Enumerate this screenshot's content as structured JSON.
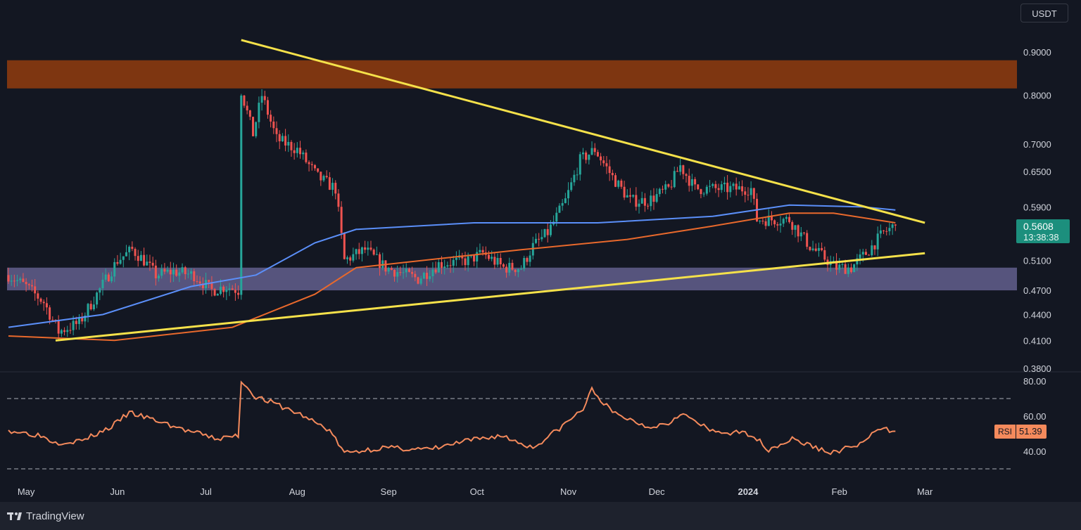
{
  "currency": "USDT",
  "price_tag": {
    "value": "0.5608",
    "timer": "13:38:38"
  },
  "rsi_tag": {
    "label": "RSI",
    "value": "51.39"
  },
  "branding": {
    "name": "TradingView"
  },
  "colors": {
    "background": "#131722",
    "up_candle": "#26a69a",
    "down_candle": "#ef5350",
    "trendline": "#f5e14a",
    "ma_blue": "#5b8ff9",
    "ma_orange": "#e9692c",
    "resistance_zone": "#8b3a10",
    "support_zone": "#6e6a9c",
    "rsi_line": "#f48a5c",
    "price_tag": "#1c8f7d"
  },
  "chart_data": [
    {
      "type": "candlestick",
      "price_scale": "log",
      "y_ticks": [
        "0.9000",
        "0.8000",
        "0.7000",
        "0.6500",
        "0.5900",
        "0.5100",
        "0.4700",
        "0.4400",
        "0.4100",
        "0.3800"
      ],
      "x_ticks": [
        "May",
        "Jun",
        "Jul",
        "Aug",
        "Sep",
        "Oct",
        "Nov",
        "Dec",
        "2024",
        "Feb",
        "Mar"
      ],
      "x_range": [
        "2023-04-25",
        "2024-03-25"
      ],
      "last_price": 0.5608,
      "price_path": [
        [
          "2023-04-25",
          0.49
        ],
        [
          "2023-05-01",
          0.475
        ],
        [
          "2023-05-07",
          0.455
        ],
        [
          "2023-05-12",
          0.42
        ],
        [
          "2023-05-19",
          0.43
        ],
        [
          "2023-05-25",
          0.465
        ],
        [
          "2023-06-01",
          0.51
        ],
        [
          "2023-06-06",
          0.525
        ],
        [
          "2023-06-10",
          0.51
        ],
        [
          "2023-06-14",
          0.49
        ],
        [
          "2023-06-20",
          0.495
        ],
        [
          "2023-06-27",
          0.49
        ],
        [
          "2023-07-03",
          0.47
        ],
        [
          "2023-07-08",
          0.475
        ],
        [
          "2023-07-12",
          0.47
        ],
        [
          "2023-07-13",
          0.81
        ],
        [
          "2023-07-17",
          0.72
        ],
        [
          "2023-07-20",
          0.8
        ],
        [
          "2023-07-25",
          0.71
        ],
        [
          "2023-08-01",
          0.69
        ],
        [
          "2023-08-08",
          0.64
        ],
        [
          "2023-08-14",
          0.62
        ],
        [
          "2023-08-17",
          0.51
        ],
        [
          "2023-08-24",
          0.525
        ],
        [
          "2023-08-31",
          0.5
        ],
        [
          "2023-09-11",
          0.485
        ],
        [
          "2023-09-18",
          0.505
        ],
        [
          "2023-09-28",
          0.51
        ],
        [
          "2023-10-03",
          0.52
        ],
        [
          "2023-10-10",
          0.5
        ],
        [
          "2023-10-16",
          0.5
        ],
        [
          "2023-10-20",
          0.53
        ],
        [
          "2023-10-25",
          0.55
        ],
        [
          "2023-10-31",
          0.6
        ],
        [
          "2023-11-05",
          0.67
        ],
        [
          "2023-11-10",
          0.69
        ],
        [
          "2023-11-16",
          0.64
        ],
        [
          "2023-11-22",
          0.6
        ],
        [
          "2023-11-28",
          0.6
        ],
        [
          "2023-12-05",
          0.62
        ],
        [
          "2023-12-09",
          0.66
        ],
        [
          "2023-12-14",
          0.62
        ],
        [
          "2023-12-22",
          0.62
        ],
        [
          "2024-01-02",
          0.62
        ],
        [
          "2024-01-04",
          0.57
        ],
        [
          "2024-01-10",
          0.57
        ],
        [
          "2024-01-15",
          0.57
        ],
        [
          "2024-01-22",
          0.53
        ],
        [
          "2024-01-31",
          0.5
        ],
        [
          "2024-02-05",
          0.5
        ],
        [
          "2024-02-10",
          0.52
        ],
        [
          "2024-02-16",
          0.55
        ],
        [
          "2024-02-20",
          0.5608
        ]
      ],
      "moving_averages": [
        {
          "color": "#5b8ff9",
          "points": [
            [
              "2023-04-25",
              0.425
            ],
            [
              "2023-05-27",
              0.44
            ],
            [
              "2023-06-26",
              0.475
            ],
            [
              "2023-07-18",
              0.49
            ],
            [
              "2023-08-07",
              0.535
            ],
            [
              "2023-08-21",
              0.555
            ],
            [
              "2023-09-30",
              0.565
            ],
            [
              "2023-10-25",
              0.565
            ],
            [
              "2023-11-11",
              0.565
            ],
            [
              "2023-12-20",
              0.575
            ],
            [
              "2024-01-15",
              0.593
            ],
            [
              "2024-02-09",
              0.59
            ],
            [
              "2024-02-20",
              0.585
            ]
          ]
        },
        {
          "color": "#e9692c",
          "points": [
            [
              "2023-04-25",
              0.415
            ],
            [
              "2023-05-31",
              0.41
            ],
            [
              "2023-07-10",
              0.425
            ],
            [
              "2023-08-07",
              0.465
            ],
            [
              "2023-08-21",
              0.5
            ],
            [
              "2023-10-16",
              0.525
            ],
            [
              "2023-11-21",
              0.54
            ],
            [
              "2023-12-20",
              0.56
            ],
            [
              "2024-01-15",
              0.58
            ],
            [
              "2024-01-30",
              0.58
            ],
            [
              "2024-02-20",
              0.565
            ]
          ]
        }
      ],
      "trendlines": [
        {
          "from": [
            "2023-07-13",
            0.93
          ],
          "to": [
            "2024-03-01",
            0.565
          ]
        },
        {
          "from": [
            "2023-05-11",
            0.41
          ],
          "to": [
            "2024-03-01",
            0.52
          ]
        }
      ],
      "zones": [
        {
          "name": "resistance",
          "from": 0.815,
          "to": 0.88,
          "color": "#8b3a10"
        },
        {
          "name": "support",
          "from": 0.47,
          "to": 0.5,
          "color": "#6e6a9c"
        }
      ]
    },
    {
      "type": "line",
      "indicator": "RSI",
      "y_ticks": [
        "80.00",
        "60.00",
        "40.00"
      ],
      "bands": [
        70,
        30
      ],
      "last_value": 51.39,
      "values": [
        [
          "2023-04-25",
          52
        ],
        [
          "2023-05-06",
          49
        ],
        [
          "2023-05-11",
          45
        ],
        [
          "2023-05-20",
          46
        ],
        [
          "2023-05-30",
          54
        ],
        [
          "2023-06-05",
          62
        ],
        [
          "2023-06-15",
          57
        ],
        [
          "2023-06-24",
          52
        ],
        [
          "2023-07-05",
          47
        ],
        [
          "2023-07-12",
          49
        ],
        [
          "2023-07-13",
          80
        ],
        [
          "2023-07-18",
          71
        ],
        [
          "2023-07-23",
          68
        ],
        [
          "2023-08-02",
          61
        ],
        [
          "2023-08-12",
          52
        ],
        [
          "2023-08-17",
          39
        ],
        [
          "2023-08-30",
          42
        ],
        [
          "2023-09-15",
          41
        ],
        [
          "2023-09-28",
          46
        ],
        [
          "2023-10-09",
          49
        ],
        [
          "2023-10-20",
          42
        ],
        [
          "2023-10-29",
          53
        ],
        [
          "2023-11-06",
          64
        ],
        [
          "2023-11-09",
          75
        ],
        [
          "2023-11-16",
          62
        ],
        [
          "2023-11-28",
          54
        ],
        [
          "2023-12-05",
          56
        ],
        [
          "2023-12-09",
          62
        ],
        [
          "2023-12-20",
          51
        ],
        [
          "2024-01-02",
          50
        ],
        [
          "2024-01-08",
          41
        ],
        [
          "2024-01-16",
          47
        ],
        [
          "2024-01-29",
          39
        ],
        [
          "2024-02-08",
          44
        ],
        [
          "2024-02-15",
          53
        ],
        [
          "2024-02-20",
          51.39
        ]
      ]
    }
  ]
}
